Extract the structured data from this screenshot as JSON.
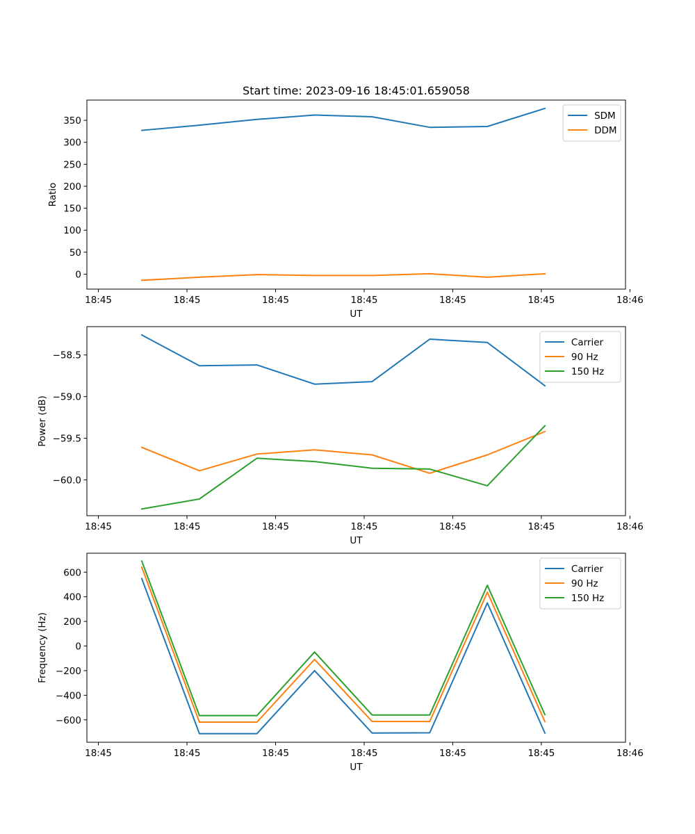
{
  "chart_data": [
    {
      "type": "line",
      "title": "Start time: 2023-09-16 18:45:01.659058",
      "xlabel": "UT",
      "ylabel": "Ratio",
      "xlim": [
        -0.13,
        5.95
      ],
      "ylim": [
        -34,
        396
      ],
      "x": [
        0.49,
        1.14,
        1.79,
        2.44,
        3.09,
        3.74,
        4.39,
        5.04
      ],
      "xticks": [
        0,
        1,
        2,
        3,
        4,
        5,
        6
      ],
      "xticklabels": [
        "18:45",
        "18:45",
        "18:45",
        "18:45",
        "18:45",
        "18:45",
        "18:46"
      ],
      "yticks": [
        0,
        50,
        100,
        150,
        200,
        250,
        300,
        350
      ],
      "yticklabels": [
        "0",
        "50",
        "100",
        "150",
        "200",
        "250",
        "300",
        "350"
      ],
      "legend": "upper right",
      "series": [
        {
          "name": "SDM",
          "color": "#1f77b4",
          "values": [
            327,
            339,
            352,
            362,
            358,
            334,
            336,
            377
          ]
        },
        {
          "name": "DDM",
          "color": "#ff7f0e",
          "values": [
            -14,
            -7,
            -1,
            -3,
            -3,
            1,
            -7,
            1
          ]
        }
      ]
    },
    {
      "type": "line",
      "title": "",
      "xlabel": "UT",
      "ylabel": "Power (dB)",
      "xlim": [
        -0.13,
        5.95
      ],
      "ylim": [
        -60.43,
        -58.16
      ],
      "x": [
        0.49,
        1.14,
        1.79,
        2.44,
        3.09,
        3.74,
        4.39,
        5.04
      ],
      "xticks": [
        0,
        1,
        2,
        3,
        4,
        5,
        6
      ],
      "xticklabels": [
        "18:45",
        "18:45",
        "18:45",
        "18:45",
        "18:45",
        "18:45",
        "18:46"
      ],
      "yticks": [
        -60.0,
        -59.5,
        -59.0,
        -58.5
      ],
      "yticklabels": [
        "−60.0",
        "−59.5",
        "−59.0",
        "−58.5"
      ],
      "legend": "upper right",
      "series": [
        {
          "name": "Carrier",
          "color": "#1f77b4",
          "values": [
            -58.26,
            -58.63,
            -58.62,
            -58.85,
            -58.82,
            -58.31,
            -58.35,
            -58.87
          ]
        },
        {
          "name": "90 Hz",
          "color": "#ff7f0e",
          "values": [
            -59.61,
            -59.89,
            -59.69,
            -59.64,
            -59.7,
            -59.92,
            -59.7,
            -59.42
          ]
        },
        {
          "name": "150 Hz",
          "color": "#2ca02c",
          "values": [
            -60.35,
            -60.23,
            -59.74,
            -59.78,
            -59.86,
            -59.87,
            -60.07,
            -59.35
          ]
        }
      ]
    },
    {
      "type": "line",
      "title": "",
      "xlabel": "UT",
      "ylabel": "Frequency (Hz)",
      "xlim": [
        -0.13,
        5.95
      ],
      "ylim": [
        -782,
        754
      ],
      "x": [
        0.49,
        1.14,
        1.79,
        2.44,
        3.09,
        3.74,
        4.39,
        5.04
      ],
      "xticks": [
        0,
        1,
        2,
        3,
        4,
        5,
        6
      ],
      "xticklabels": [
        "18:45",
        "18:45",
        "18:45",
        "18:45",
        "18:45",
        "18:45",
        "18:46"
      ],
      "yticks": [
        -600,
        -400,
        -200,
        0,
        200,
        400,
        600
      ],
      "yticklabels": [
        "−600",
        "−400",
        "−200",
        "0",
        "200",
        "400",
        "600"
      ],
      "legend": "upper right",
      "series": [
        {
          "name": "Carrier",
          "color": "#1f77b4",
          "values": [
            548,
            -712,
            -712,
            -200,
            -707,
            -705,
            350,
            -707
          ]
        },
        {
          "name": "90 Hz",
          "color": "#ff7f0e",
          "values": [
            640,
            -618,
            -618,
            -109,
            -613,
            -613,
            437,
            -615
          ]
        },
        {
          "name": "150 Hz",
          "color": "#2ca02c",
          "values": [
            690,
            -565,
            -565,
            -49,
            -560,
            -560,
            493,
            -557
          ]
        }
      ]
    }
  ]
}
